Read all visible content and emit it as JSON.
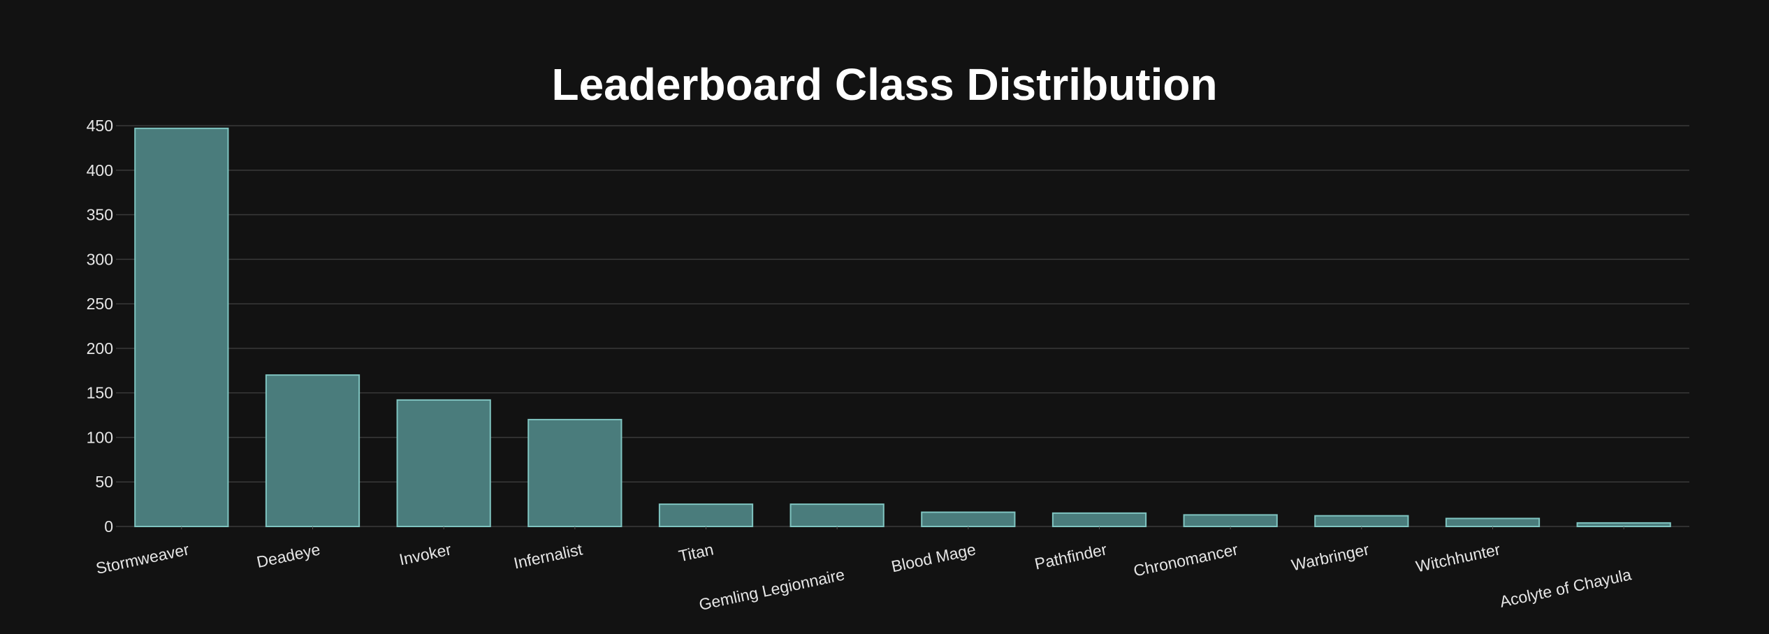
{
  "chart_data": {
    "type": "bar",
    "title": "Leaderboard Class Distribution",
    "xlabel": "",
    "ylabel": "",
    "categories": [
      "Stormweaver",
      "Deadeye",
      "Invoker",
      "Infernalist",
      "Titan",
      "Gemling Legionnaire",
      "Blood Mage",
      "Pathfinder",
      "Chronomancer",
      "Warbringer",
      "Witchhunter",
      "Acolyte of Chayula"
    ],
    "values": [
      447,
      170,
      142,
      120,
      25,
      25,
      16,
      15,
      13,
      12,
      9,
      4
    ],
    "ylim": [
      0,
      450
    ],
    "yticks": [
      0,
      50,
      100,
      150,
      200,
      250,
      300,
      350,
      400,
      450
    ],
    "grid": true,
    "legend": "none",
    "bar_fill": "#4a7c7c",
    "bar_stroke": "#7fc4c0"
  }
}
